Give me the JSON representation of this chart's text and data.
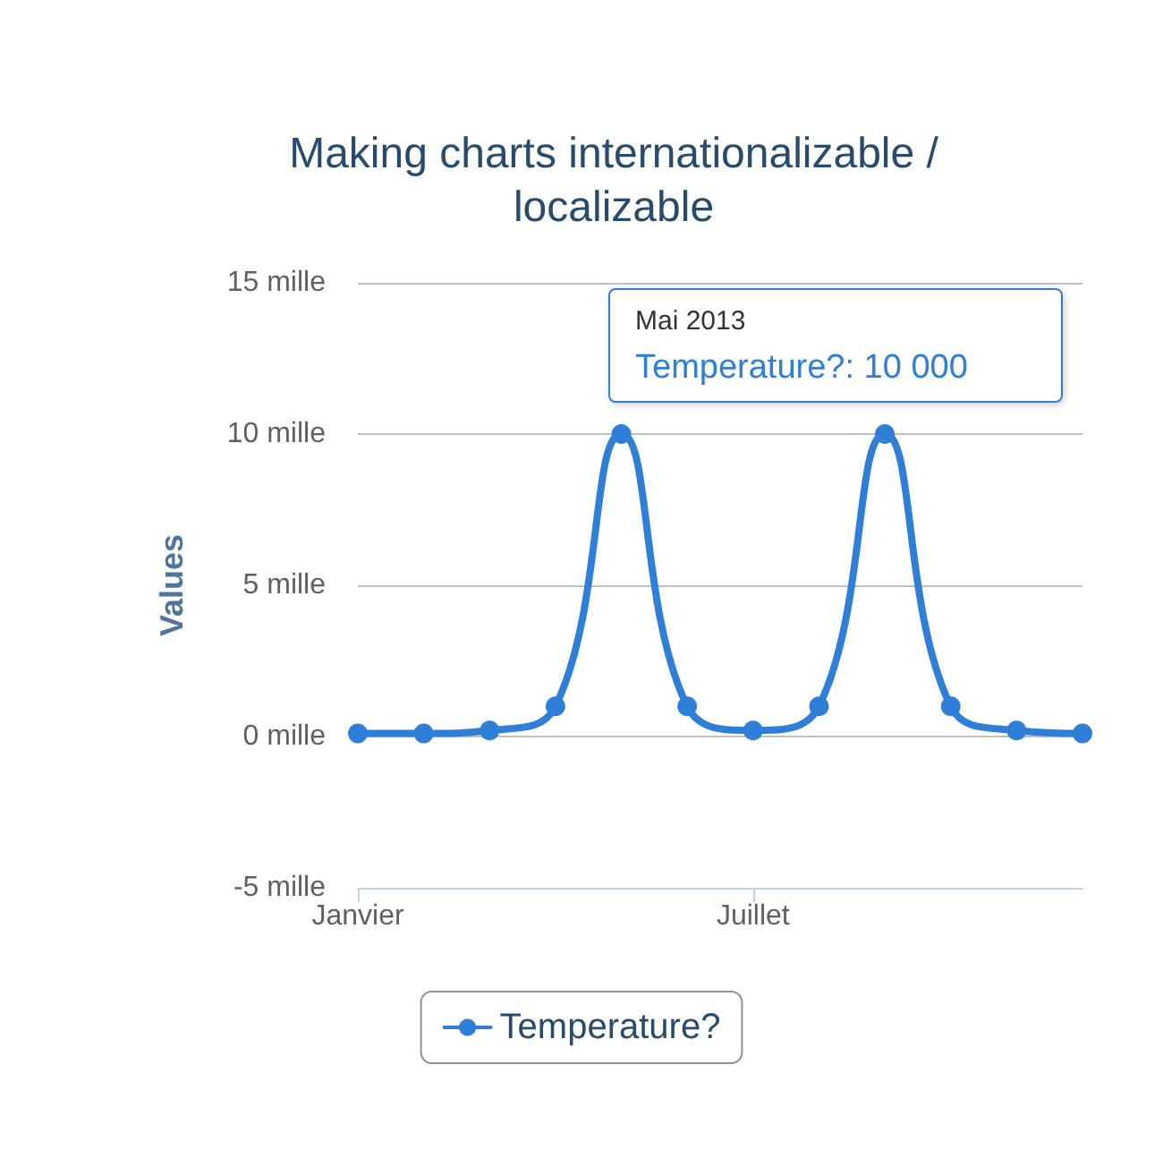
{
  "chart_data": {
    "type": "line",
    "title": "Making charts internationalizable /\nlocalizable",
    "ylabel": "Values",
    "categories": [
      "Janvier",
      null,
      null,
      null,
      null,
      null,
      "Juillet",
      null,
      null,
      null,
      null,
      null
    ],
    "series": [
      {
        "name": "Temperature?",
        "color": "#2f7ed8",
        "values": [
          0.1,
          0.1,
          0.2,
          1,
          10,
          1,
          0.2,
          1,
          10,
          1,
          0.2,
          0.1
        ]
      }
    ],
    "ylim": [
      -5,
      15
    ],
    "yticks": [
      {
        "value": -5,
        "label": "-5 mille"
      },
      {
        "value": 0,
        "label": "0 mille"
      },
      {
        "value": 5,
        "label": "5 mille"
      },
      {
        "value": 10,
        "label": "10 mille"
      },
      {
        "value": 15,
        "label": "15 mille"
      }
    ],
    "grid": "y",
    "legend": "bottom",
    "marker": "circle",
    "line_style": "solid",
    "annotations": [
      "Mai 2013",
      "Temperature?: 10 000"
    ]
  }
}
